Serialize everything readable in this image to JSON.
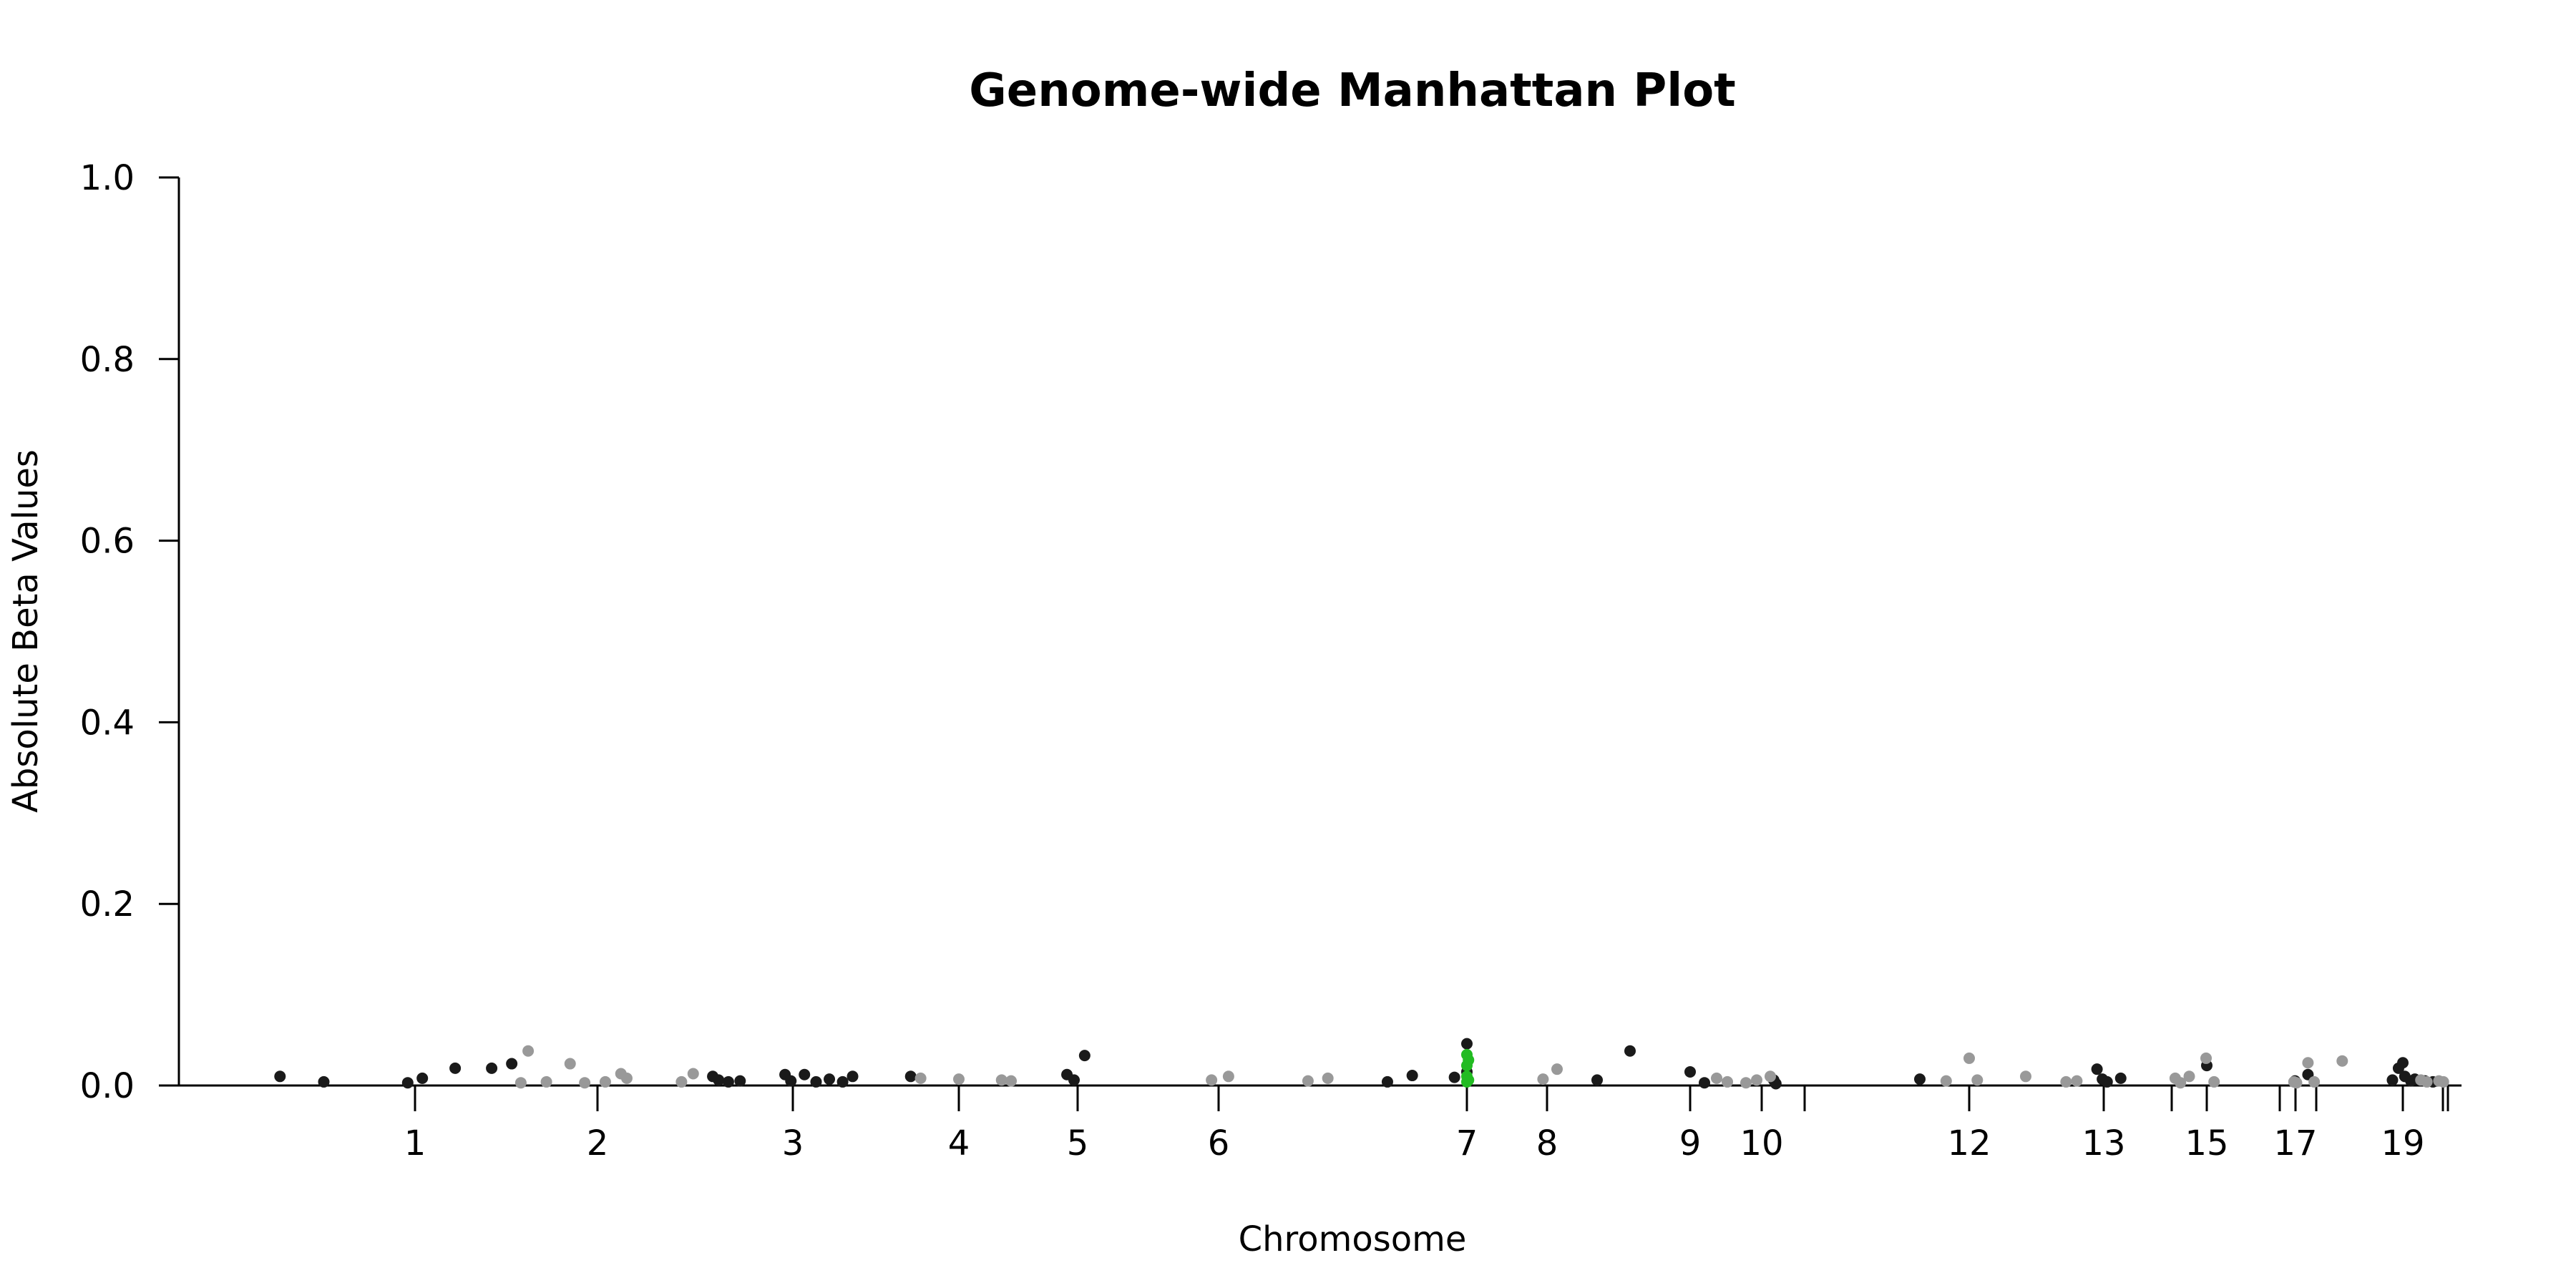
{
  "chart_data": {
    "type": "scatter",
    "title": "Genome-wide Manhattan Plot",
    "xlabel": "Chromosome",
    "ylabel": "Absolute Beta Values",
    "ylim": [
      0,
      1
    ],
    "yticks": [
      "0.0",
      "0.2",
      "0.4",
      "0.6",
      "0.8",
      "1.0"
    ],
    "grid": false,
    "legend": "none",
    "colors": {
      "dark": "#1a1a1a",
      "light": "#999999",
      "highlight": "#22bb22"
    },
    "chromosome_ticks": [
      {
        "label": "1",
        "x": 1
      },
      {
        "label": "2",
        "x": 2
      },
      {
        "label": "3",
        "x": 3
      },
      {
        "label": "4",
        "x": 4
      },
      {
        "label": "5",
        "x": 5
      },
      {
        "label": "6",
        "x": 6
      },
      {
        "label": "7",
        "x": 7
      },
      {
        "label": "8",
        "x": 8
      },
      {
        "label": "9",
        "x": 9
      },
      {
        "label": "10",
        "x": 10
      },
      {
        "label": "",
        "x": 11
      },
      {
        "label": "12",
        "x": 12
      },
      {
        "label": "13",
        "x": 13
      },
      {
        "label": "",
        "x": 14
      },
      {
        "label": "15",
        "x": 15
      },
      {
        "label": "",
        "x": 16
      },
      {
        "label": "17",
        "x": 17
      },
      {
        "label": "",
        "x": 18
      },
      {
        "label": "19",
        "x": 19
      },
      {
        "label": "",
        "x": 20
      },
      {
        "label": "",
        "x": 21
      }
    ],
    "series": [
      {
        "color": "dark",
        "points": [
          [
            0.26,
            0.01
          ],
          [
            0.5,
            0.004
          ],
          [
            0.96,
            0.003
          ],
          [
            1.04,
            0.008
          ],
          [
            1.22,
            0.019
          ],
          [
            1.42,
            0.019
          ],
          [
            1.53,
            0.024
          ],
          [
            2.59,
            0.01
          ],
          [
            2.62,
            0.006
          ],
          [
            2.67,
            0.004
          ],
          [
            2.73,
            0.005
          ],
          [
            2.96,
            0.012
          ],
          [
            2.99,
            0.005
          ],
          [
            3.07,
            0.012
          ],
          [
            3.14,
            0.004
          ],
          [
            3.22,
            0.007
          ],
          [
            3.3,
            0.004
          ],
          [
            3.36,
            0.01
          ],
          [
            3.71,
            0.01
          ],
          [
            4.91,
            0.012
          ],
          [
            4.97,
            0.006
          ],
          [
            5.05,
            0.033
          ],
          [
            6.68,
            0.004
          ],
          [
            6.78,
            0.011
          ],
          [
            7.0,
            0.046
          ],
          [
            7.0,
            0.015
          ],
          [
            6.95,
            0.009
          ],
          [
            8.35,
            0.006
          ],
          [
            8.58,
            0.038
          ],
          [
            9.0,
            0.015
          ],
          [
            9.2,
            0.003
          ],
          [
            10.28,
            0.006
          ],
          [
            10.33,
            0.002
          ],
          [
            11.7,
            0.007
          ],
          [
            12.95,
            0.018
          ],
          [
            12.99,
            0.007
          ],
          [
            13.05,
            0.004
          ],
          [
            13.25,
            0.008
          ],
          [
            15.0,
            0.022
          ],
          [
            16.97,
            0.005
          ],
          [
            17.6,
            0.012
          ],
          [
            18.88,
            0.006
          ],
          [
            18.95,
            0.019
          ],
          [
            19.0,
            0.025
          ],
          [
            19.05,
            0.01
          ],
          [
            19.2,
            0.005
          ],
          [
            19.3,
            0.007
          ],
          [
            19.55,
            0.005
          ],
          [
            19.75,
            0.004
          ]
        ]
      },
      {
        "color": "light",
        "points": [
          [
            1.58,
            0.003
          ],
          [
            1.62,
            0.038
          ],
          [
            1.72,
            0.004
          ],
          [
            1.85,
            0.024
          ],
          [
            1.93,
            0.003
          ],
          [
            2.04,
            0.004
          ],
          [
            2.12,
            0.013
          ],
          [
            2.15,
            0.008
          ],
          [
            2.43,
            0.004
          ],
          [
            2.49,
            0.013
          ],
          [
            3.77,
            0.008
          ],
          [
            4.0,
            0.007
          ],
          [
            4.36,
            0.006
          ],
          [
            4.44,
            0.005
          ],
          [
            5.95,
            0.006
          ],
          [
            6.04,
            0.01
          ],
          [
            6.36,
            0.005
          ],
          [
            6.44,
            0.008
          ],
          [
            7.95,
            0.007
          ],
          [
            8.07,
            0.018
          ],
          [
            9.37,
            0.008
          ],
          [
            9.52,
            0.004
          ],
          [
            9.78,
            0.003
          ],
          [
            9.93,
            0.006
          ],
          [
            10.2,
            0.01
          ],
          [
            11.86,
            0.005
          ],
          [
            12.0,
            0.03
          ],
          [
            12.06,
            0.006
          ],
          [
            12.42,
            0.01
          ],
          [
            12.72,
            0.004
          ],
          [
            12.8,
            0.005
          ],
          [
            14.1,
            0.008
          ],
          [
            14.25,
            0.003
          ],
          [
            14.5,
            0.01
          ],
          [
            14.98,
            0.03
          ],
          [
            15.1,
            0.004
          ],
          [
            16.9,
            0.004
          ],
          [
            17.05,
            0.003
          ],
          [
            17.6,
            0.025
          ],
          [
            17.9,
            0.004
          ],
          [
            18.3,
            0.027
          ],
          [
            19.45,
            0.006
          ],
          [
            19.6,
            0.004
          ],
          [
            19.9,
            0.005
          ],
          [
            20.1,
            0.004
          ]
        ]
      },
      {
        "color": "highlight",
        "points": [
          [
            7.0,
            0.034
          ],
          [
            7.02,
            0.028
          ],
          [
            7.0,
            0.022
          ],
          [
            7.0,
            0.01
          ],
          [
            7.02,
            0.006
          ],
          [
            7.0,
            0.004
          ]
        ]
      }
    ]
  }
}
